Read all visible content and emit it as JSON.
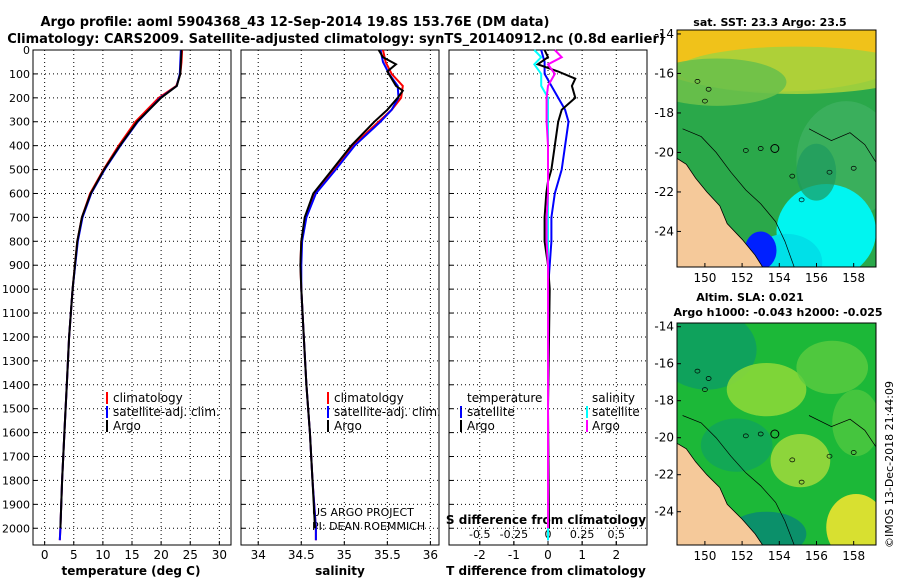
{
  "header": {
    "title_line1": "Argo profile: aoml 5904368_43 12-Sep-2014 19.8S 153.76E (DM data)",
    "title_line2": "Climatology: CARS2009. Satellite-adjusted climatology: synTS_20140912.nc (0.8d earlier)"
  },
  "colors": {
    "climatology": "#ff0000",
    "satellite": "#0000ff",
    "argo": "#000000",
    "s_satellite": "#00ffff",
    "s_argo": "#ff00ff",
    "land": "#f5c99a"
  },
  "chart_data": [
    {
      "type": "line",
      "id": "temperature",
      "xlabel": "temperature (deg C)",
      "ylabel": "",
      "xlim": [
        -2,
        32
      ],
      "ylim": [
        2070,
        0
      ],
      "xticks": [
        "0",
        "5",
        "10",
        "15",
        "20",
        "25",
        "30"
      ],
      "yticks": [
        "0",
        "100",
        "200",
        "300",
        "400",
        "500",
        "600",
        "700",
        "800",
        "900",
        "1000",
        "1100",
        "1200",
        "1300",
        "1400",
        "1500",
        "1600",
        "1700",
        "1800",
        "1900",
        "2000"
      ],
      "legend": {
        "items": [
          "climatology",
          "satellite-adj. clim.",
          "Argo"
        ],
        "position": "lower-right"
      },
      "series": [
        {
          "name": "climatology",
          "depth": [
            0,
            50,
            100,
            150,
            200,
            300,
            400,
            500,
            600,
            700,
            800,
            1000,
            1200,
            1400,
            1600,
            1800,
            2000,
            2050
          ],
          "values": [
            23.6,
            23.5,
            23.3,
            22.6,
            19.6,
            15.6,
            12.7,
            10.1,
            7.8,
            6.4,
            5.6,
            4.8,
            4.2,
            3.8,
            3.4,
            3.0,
            2.7,
            2.6
          ]
        },
        {
          "name": "satellite-adj. clim.",
          "depth": [
            0,
            50,
            100,
            150,
            200,
            300,
            400,
            500,
            600,
            700,
            800,
            1000,
            1200,
            1400,
            1600,
            1800,
            2000,
            2050
          ],
          "values": [
            23.4,
            23.3,
            23.2,
            22.7,
            19.9,
            16.0,
            13.0,
            10.3,
            8.0,
            6.5,
            5.7,
            4.8,
            4.2,
            3.8,
            3.4,
            3.0,
            2.7,
            2.6
          ]
        },
        {
          "name": "Argo",
          "depth": [
            0,
            50,
            100,
            150,
            200,
            300,
            400,
            500,
            600,
            700,
            800,
            1000,
            1200,
            1400,
            1600,
            1800,
            2000
          ],
          "values": [
            23.5,
            23.4,
            23.3,
            22.7,
            20.0,
            15.9,
            12.9,
            10.2,
            7.9,
            6.4,
            5.6,
            4.8,
            4.2,
            3.8,
            3.4,
            3.0,
            2.7
          ]
        }
      ]
    },
    {
      "type": "line",
      "id": "salinity",
      "xlabel": "salinity",
      "ylabel": "",
      "xlim": [
        33.8,
        36.1
      ],
      "ylim": [
        2070,
        0
      ],
      "xticks": [
        "34",
        "34.5",
        "35",
        "35.5",
        "36"
      ],
      "legend": {
        "items": [
          "climatology",
          "satellite-adj. clim.",
          "Argo"
        ],
        "position": "lower-right"
      },
      "annotations": [
        "US ARGO PROJECT",
        "PI: DEAN ROEMMICH"
      ],
      "series": [
        {
          "name": "climatology",
          "depth": [
            0,
            50,
            100,
            150,
            200,
            250,
            300,
            400,
            500,
            600,
            700,
            800,
            900,
            1000,
            1200,
            1400,
            1600,
            1800,
            2000,
            2050
          ],
          "values": [
            35.45,
            35.48,
            35.55,
            35.68,
            35.66,
            35.55,
            35.4,
            35.1,
            34.88,
            34.65,
            34.55,
            34.5,
            34.49,
            34.5,
            34.53,
            34.56,
            34.6,
            34.63,
            34.67,
            34.67
          ]
        },
        {
          "name": "satellite-adj. clim.",
          "depth": [
            0,
            50,
            100,
            150,
            200,
            250,
            300,
            400,
            500,
            600,
            700,
            800,
            900,
            1000,
            1200,
            1400,
            1600,
            1800,
            2000,
            2050
          ],
          "values": [
            35.42,
            35.45,
            35.52,
            35.62,
            35.63,
            35.55,
            35.42,
            35.12,
            34.9,
            34.67,
            34.56,
            34.51,
            34.5,
            34.5,
            34.53,
            34.56,
            34.6,
            34.63,
            34.67,
            34.67
          ]
        },
        {
          "name": "Argo",
          "depth": [
            0,
            30,
            60,
            90,
            120,
            150,
            170,
            200,
            250,
            300,
            400,
            500,
            600,
            700,
            800,
            900,
            1000,
            1200,
            1400,
            1600,
            1800,
            2000
          ],
          "values": [
            35.4,
            35.45,
            35.6,
            35.5,
            35.55,
            35.6,
            35.68,
            35.62,
            35.5,
            35.35,
            35.08,
            34.86,
            34.64,
            34.54,
            34.5,
            34.49,
            34.5,
            34.53,
            34.56,
            34.6,
            34.63,
            34.66
          ]
        }
      ]
    },
    {
      "type": "line",
      "id": "differences",
      "xlabel": "T difference from climatology",
      "xlabel_top": "S difference from climatology",
      "xlim": [
        -2.9,
        2.9
      ],
      "ylim": [
        2070,
        0
      ],
      "xticks": [
        "-2",
        "-1",
        "0",
        "1",
        "2"
      ],
      "xticks_s": [
        "-0.5",
        "-0.25",
        "0",
        "0.25",
        "0.5"
      ],
      "legend_t": {
        "title": "temperature",
        "items": [
          "satellite",
          "Argo"
        ]
      },
      "legend_s": {
        "title": "salinity",
        "items": [
          "satellite",
          "Argo"
        ]
      },
      "series": [
        {
          "name": "T satellite",
          "depth": [
            0,
            50,
            100,
            150,
            200,
            250,
            300,
            400,
            500,
            600,
            700,
            800,
            1000,
            1500,
            2050
          ],
          "values": [
            -0.2,
            -0.1,
            -0.1,
            0.1,
            0.3,
            0.5,
            0.6,
            0.5,
            0.4,
            0.2,
            0.1,
            0.1,
            0.0,
            0.0,
            0.0
          ]
        },
        {
          "name": "T Argo",
          "depth": [
            0,
            30,
            60,
            90,
            120,
            150,
            200,
            250,
            300,
            400,
            500,
            550,
            600,
            700,
            800,
            900,
            1000,
            1500,
            2000
          ],
          "values": [
            -0.1,
            0.0,
            -0.3,
            0.3,
            0.8,
            0.7,
            0.8,
            0.4,
            0.3,
            0.2,
            0.1,
            0.0,
            -0.05,
            -0.1,
            -0.1,
            0.0,
            0.05,
            0.0,
            0.03
          ]
        },
        {
          "name": "S satellite",
          "depth": [
            0,
            30,
            60,
            100,
            150,
            200,
            300,
            400,
            500,
            600,
            800,
            1000,
            1500,
            2050
          ],
          "values": [
            -0.1,
            -0.05,
            -0.1,
            -0.05,
            -0.05,
            0.0,
            0.0,
            0.0,
            0.0,
            0.0,
            0.0,
            0.0,
            0.0,
            0.0
          ]
        },
        {
          "name": "S Argo",
          "depth": [
            0,
            30,
            60,
            100,
            150,
            200,
            300,
            400,
            500,
            600,
            700,
            800,
            900,
            1000,
            1500,
            2000
          ],
          "values": [
            0.05,
            0.1,
            0.0,
            0.05,
            0.0,
            -0.01,
            -0.01,
            0.0,
            0.0,
            0.0,
            -0.01,
            -0.01,
            0.0,
            0.0,
            0.0,
            0.0
          ]
        }
      ]
    },
    {
      "type": "heatmap",
      "id": "sst-map",
      "title": "sat. SST: 23.3 Argo: 23.5",
      "xlim": [
        148.5,
        159.2
      ],
      "ylim": [
        -25.8,
        -13.8
      ],
      "xticks": [
        "150",
        "152",
        "154",
        "156",
        "158"
      ],
      "yticks": [
        "-14",
        "-16",
        "-18",
        "-20",
        "-22",
        "-24"
      ],
      "float_position": [
        153.76,
        -19.8
      ]
    },
    {
      "type": "heatmap",
      "id": "sla-map",
      "title_line1": "Altim. SLA: 0.021",
      "title_line2": "Argo h1000: -0.043 h2000: -0.025",
      "xlim": [
        148.5,
        159.2
      ],
      "ylim": [
        -25.8,
        -13.8
      ],
      "xticks": [
        "150",
        "152",
        "154",
        "156",
        "158"
      ],
      "yticks": [
        "-14",
        "-16",
        "-18",
        "-20",
        "-22",
        "-24"
      ],
      "float_position": [
        153.76,
        -19.8
      ]
    }
  ],
  "footer": {
    "credit": "©IMOS 13-Dec-2018 21:44:09"
  }
}
